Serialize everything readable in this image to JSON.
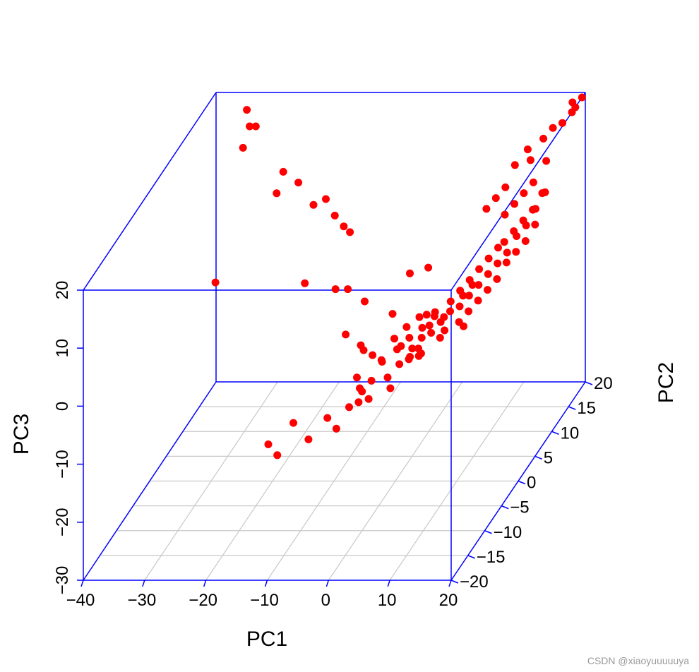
{
  "chart_data": {
    "type": "scatter",
    "projection": "3d",
    "title": "",
    "xlabel": "PC1",
    "ylabel": "PC2",
    "zlabel": "PC3",
    "xlim": [
      -40,
      20
    ],
    "ylim": [
      -20,
      20
    ],
    "zlim": [
      -30,
      20
    ],
    "x_ticks": [
      "−40",
      "−30",
      "−20",
      "−10",
      "0",
      "10",
      "20"
    ],
    "y_ticks": [
      "−20",
      "−15",
      "−10",
      "−5",
      "0",
      "5",
      "10",
      "15",
      "20"
    ],
    "z_ticks": [
      "−30",
      "−20",
      "−10",
      "0",
      "10",
      "20"
    ],
    "box_color": "#0000ff",
    "grid_color": "#c8c8c8",
    "point_color": "#ff0000",
    "grid": "floor",
    "points": [
      [
        -35,
        20,
        17
      ],
      [
        -34,
        19,
        15
      ],
      [
        -33,
        19,
        15
      ],
      [
        -34,
        17,
        13
      ],
      [
        -28,
        18,
        8
      ],
      [
        -25,
        17,
        7
      ],
      [
        -28,
        16,
        6
      ],
      [
        -22,
        16,
        4
      ],
      [
        -20,
        16,
        5
      ],
      [
        -18,
        15,
        3
      ],
      [
        -16,
        14,
        2
      ],
      [
        -15,
        14,
        1
      ],
      [
        -32,
        5,
        0
      ],
      [
        -18,
        6,
        -1
      ],
      [
        -13,
        6,
        -2
      ],
      [
        -11,
        6,
        -2
      ],
      [
        -2,
        8,
        -1
      ],
      [
        1,
        8,
        0
      ],
      [
        -5,
        0,
        1
      ],
      [
        -1,
        1,
        -2
      ],
      [
        4,
        2,
        -3
      ],
      [
        5,
        1,
        -4
      ],
      [
        8,
        0,
        -4
      ],
      [
        10,
        2,
        -5
      ],
      [
        -7,
        -2,
        -3
      ],
      [
        -4,
        -3,
        -4
      ],
      [
        0,
        -4,
        -6
      ],
      [
        2,
        -2,
        -5
      ],
      [
        4,
        -3,
        -6
      ],
      [
        6,
        -4,
        -5
      ],
      [
        -3,
        -6,
        -7
      ],
      [
        -2,
        -7,
        -8
      ],
      [
        0,
        -8,
        -9
      ],
      [
        2,
        -6,
        -7
      ],
      [
        3,
        -7,
        -8
      ],
      [
        -9,
        -14,
        -8
      ],
      [
        -12,
        -16,
        -10
      ],
      [
        -10,
        -17,
        -11
      ],
      [
        -6,
        -15,
        -10
      ],
      [
        -4,
        -13,
        -8
      ],
      [
        -2,
        -14,
        -9
      ],
      [
        -1,
        -12,
        -7
      ],
      [
        0,
        -10,
        -6
      ],
      [
        0,
        -11,
        -7
      ],
      [
        1,
        -9,
        -5
      ],
      [
        5,
        -8,
        -3
      ],
      [
        6,
        -6,
        -2
      ],
      [
        7,
        -5,
        -1
      ],
      [
        8,
        -4,
        -1
      ],
      [
        8,
        -7,
        -2
      ],
      [
        9,
        -3,
        0
      ],
      [
        10,
        -5,
        -1
      ],
      [
        10,
        1,
        2
      ],
      [
        11,
        -1,
        1
      ],
      [
        12,
        0,
        2
      ],
      [
        12,
        -3,
        0
      ],
      [
        13,
        1,
        3
      ],
      [
        13,
        -2,
        1
      ],
      [
        14,
        2,
        4
      ],
      [
        14,
        -1,
        2
      ],
      [
        15,
        3,
        5
      ],
      [
        15,
        0,
        3
      ],
      [
        16,
        4,
        6
      ],
      [
        16,
        1,
        4
      ],
      [
        17,
        5,
        8
      ],
      [
        17,
        2,
        6
      ],
      [
        18,
        6,
        9
      ],
      [
        18,
        3,
        7
      ],
      [
        19,
        7,
        11
      ],
      [
        19,
        4,
        8
      ],
      [
        20,
        8,
        13
      ],
      [
        20,
        5,
        10
      ],
      [
        19,
        9,
        12
      ],
      [
        18,
        8,
        10
      ],
      [
        17,
        7,
        9
      ],
      [
        16,
        6,
        8
      ],
      [
        15,
        5,
        7
      ],
      [
        14,
        5,
        6
      ],
      [
        13,
        4,
        5
      ],
      [
        12,
        3,
        4
      ],
      [
        11,
        2,
        3
      ],
      [
        9,
        -2,
        0
      ],
      [
        8,
        -3,
        1
      ],
      [
        7,
        -6,
        -2
      ],
      [
        6,
        -7,
        -3
      ],
      [
        5,
        -5,
        -1
      ],
      [
        4,
        -4,
        0
      ],
      [
        9,
        0,
        1
      ],
      [
        10,
        -2,
        1
      ],
      [
        11,
        0,
        2
      ],
      [
        12,
        1,
        3
      ],
      [
        7,
        -1,
        0
      ],
      [
        6,
        -3,
        -1
      ],
      [
        5,
        -2,
        0
      ],
      [
        3,
        -5,
        -3
      ],
      [
        2,
        -4,
        -2
      ],
      [
        1,
        -6,
        -4
      ],
      [
        -1,
        -5,
        -4
      ],
      [
        -3,
        -4,
        -4
      ],
      [
        14,
        10,
        16
      ],
      [
        15,
        12,
        17
      ],
      [
        16,
        11,
        16
      ],
      [
        17,
        13,
        18
      ],
      [
        18,
        14,
        19
      ],
      [
        19,
        15,
        19
      ],
      [
        20,
        16,
        20
      ],
      [
        20,
        17,
        20
      ],
      [
        19,
        18,
        20
      ],
      [
        20,
        19,
        20
      ],
      [
        18,
        12,
        15
      ],
      [
        17,
        10,
        13
      ],
      [
        16,
        9,
        12
      ],
      [
        15,
        8,
        11
      ],
      [
        14,
        7,
        10
      ],
      [
        13,
        9,
        13
      ],
      [
        12,
        8,
        12
      ],
      [
        11,
        7,
        11
      ]
    ]
  },
  "watermark": "CSDN @xiaoyuuuuuya"
}
